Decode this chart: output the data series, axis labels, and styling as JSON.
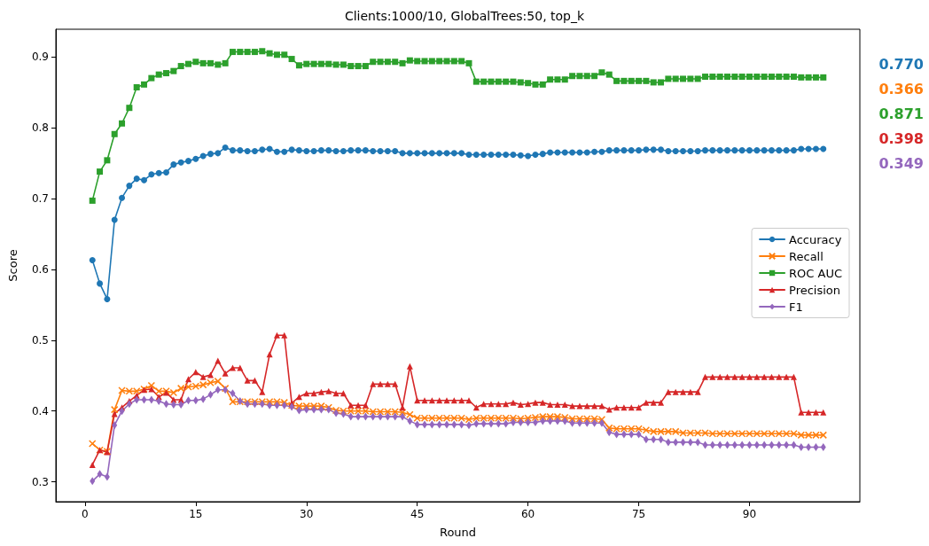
{
  "chart_data": {
    "type": "line",
    "title": "Clients:1000/10, GlobalTrees:50, top_k",
    "xlabel": "Round",
    "ylabel": "Score",
    "x": [
      1,
      2,
      3,
      4,
      5,
      6,
      7,
      8,
      9,
      10,
      11,
      12,
      13,
      14,
      15,
      16,
      17,
      18,
      19,
      20,
      21,
      22,
      23,
      24,
      25,
      26,
      27,
      28,
      29,
      30,
      31,
      32,
      33,
      34,
      35,
      36,
      37,
      38,
      39,
      40,
      41,
      42,
      43,
      44,
      45,
      46,
      47,
      48,
      49,
      50,
      51,
      52,
      53,
      54,
      55,
      56,
      57,
      58,
      59,
      60,
      61,
      62,
      63,
      64,
      65,
      66,
      67,
      68,
      69,
      70,
      71,
      72,
      73,
      74,
      75,
      76,
      77,
      78,
      79,
      80,
      81,
      82,
      83,
      84,
      85,
      86,
      87,
      88,
      89,
      90,
      91,
      92,
      93,
      94,
      95,
      96,
      97,
      98,
      99,
      100
    ],
    "xlim": [
      -3.95,
      104.95
    ],
    "xticks": [
      0,
      15,
      30,
      45,
      60,
      75,
      90
    ],
    "ylim": [
      0.272,
      0.939
    ],
    "yticks": [
      0.3,
      0.4,
      0.5,
      0.6,
      0.7,
      0.8,
      0.9
    ],
    "grid": false,
    "legend": "right",
    "line_style": "solid",
    "series": [
      {
        "name": "Accuracy",
        "color": "#1f77b4",
        "marker": "circle",
        "values": [
          0.613,
          0.58,
          0.558,
          0.67,
          0.701,
          0.718,
          0.728,
          0.726,
          0.734,
          0.736,
          0.737,
          0.748,
          0.751,
          0.753,
          0.756,
          0.76,
          0.763,
          0.764,
          0.772,
          0.768,
          0.768,
          0.767,
          0.767,
          0.769,
          0.77,
          0.766,
          0.766,
          0.769,
          0.768,
          0.767,
          0.767,
          0.768,
          0.768,
          0.767,
          0.767,
          0.768,
          0.768,
          0.768,
          0.767,
          0.767,
          0.767,
          0.767,
          0.764,
          0.764,
          0.764,
          0.764,
          0.764,
          0.764,
          0.764,
          0.764,
          0.764,
          0.762,
          0.762,
          0.762,
          0.762,
          0.762,
          0.762,
          0.762,
          0.761,
          0.76,
          0.762,
          0.763,
          0.765,
          0.765,
          0.765,
          0.765,
          0.765,
          0.765,
          0.766,
          0.766,
          0.768,
          0.768,
          0.768,
          0.768,
          0.768,
          0.769,
          0.769,
          0.769,
          0.767,
          0.767,
          0.767,
          0.767,
          0.767,
          0.768,
          0.768,
          0.768,
          0.768,
          0.768,
          0.768,
          0.768,
          0.768,
          0.768,
          0.768,
          0.768,
          0.768,
          0.768,
          0.77,
          0.77,
          0.77,
          0.77
        ]
      },
      {
        "name": "Recall",
        "color": "#ff7f0e",
        "marker": "cross",
        "values": [
          0.354,
          0.345,
          0.343,
          0.402,
          0.429,
          0.428,
          0.428,
          0.431,
          0.436,
          0.428,
          0.428,
          0.426,
          0.432,
          0.434,
          0.435,
          0.437,
          0.44,
          0.442,
          0.432,
          0.413,
          0.413,
          0.413,
          0.413,
          0.413,
          0.413,
          0.413,
          0.412,
          0.408,
          0.407,
          0.407,
          0.407,
          0.407,
          0.405,
          0.401,
          0.4,
          0.4,
          0.4,
          0.4,
          0.399,
          0.399,
          0.399,
          0.399,
          0.398,
          0.395,
          0.39,
          0.39,
          0.39,
          0.39,
          0.39,
          0.39,
          0.39,
          0.388,
          0.39,
          0.39,
          0.39,
          0.39,
          0.39,
          0.39,
          0.389,
          0.39,
          0.391,
          0.392,
          0.392,
          0.392,
          0.391,
          0.389,
          0.389,
          0.389,
          0.389,
          0.388,
          0.376,
          0.375,
          0.375,
          0.375,
          0.375,
          0.373,
          0.371,
          0.371,
          0.371,
          0.371,
          0.369,
          0.369,
          0.369,
          0.369,
          0.368,
          0.368,
          0.368,
          0.368,
          0.368,
          0.368,
          0.368,
          0.368,
          0.368,
          0.368,
          0.368,
          0.368,
          0.366,
          0.366,
          0.366,
          0.366
        ]
      },
      {
        "name": "ROC AUC",
        "color": "#2ca02c",
        "marker": "square",
        "values": [
          0.697,
          0.738,
          0.754,
          0.791,
          0.806,
          0.828,
          0.857,
          0.861,
          0.87,
          0.875,
          0.877,
          0.88,
          0.887,
          0.89,
          0.893,
          0.891,
          0.891,
          0.889,
          0.891,
          0.907,
          0.907,
          0.907,
          0.907,
          0.908,
          0.905,
          0.903,
          0.903,
          0.897,
          0.888,
          0.89,
          0.89,
          0.89,
          0.89,
          0.889,
          0.889,
          0.887,
          0.887,
          0.887,
          0.893,
          0.893,
          0.893,
          0.893,
          0.891,
          0.895,
          0.894,
          0.894,
          0.894,
          0.894,
          0.894,
          0.894,
          0.894,
          0.891,
          0.865,
          0.865,
          0.865,
          0.865,
          0.865,
          0.865,
          0.864,
          0.863,
          0.861,
          0.861,
          0.868,
          0.868,
          0.868,
          0.873,
          0.873,
          0.873,
          0.873,
          0.878,
          0.875,
          0.866,
          0.866,
          0.866,
          0.866,
          0.866,
          0.864,
          0.864,
          0.869,
          0.869,
          0.869,
          0.869,
          0.869,
          0.872,
          0.872,
          0.872,
          0.872,
          0.872,
          0.872,
          0.872,
          0.872,
          0.872,
          0.872,
          0.872,
          0.872,
          0.872,
          0.871,
          0.871,
          0.871,
          0.871
        ]
      },
      {
        "name": "Precision",
        "color": "#d62728",
        "marker": "triangle",
        "values": [
          0.324,
          0.345,
          0.342,
          0.396,
          0.405,
          0.414,
          0.422,
          0.43,
          0.431,
          0.42,
          0.426,
          0.416,
          0.416,
          0.445,
          0.455,
          0.448,
          0.451,
          0.471,
          0.453,
          0.461,
          0.461,
          0.443,
          0.443,
          0.427,
          0.48,
          0.507,
          0.507,
          0.411,
          0.42,
          0.425,
          0.425,
          0.427,
          0.428,
          0.425,
          0.425,
          0.408,
          0.408,
          0.408,
          0.438,
          0.438,
          0.438,
          0.438,
          0.405,
          0.463,
          0.415,
          0.415,
          0.415,
          0.415,
          0.415,
          0.415,
          0.415,
          0.415,
          0.405,
          0.41,
          0.41,
          0.41,
          0.41,
          0.412,
          0.409,
          0.41,
          0.412,
          0.412,
          0.409,
          0.409,
          0.409,
          0.407,
          0.407,
          0.407,
          0.407,
          0.407,
          0.402,
          0.405,
          0.405,
          0.405,
          0.405,
          0.412,
          0.412,
          0.412,
          0.427,
          0.427,
          0.427,
          0.427,
          0.427,
          0.448,
          0.448,
          0.448,
          0.448,
          0.448,
          0.448,
          0.448,
          0.448,
          0.448,
          0.448,
          0.448,
          0.448,
          0.448,
          0.398,
          0.398,
          0.398,
          0.398
        ]
      },
      {
        "name": "F1",
        "color": "#9467bd",
        "marker": "diamond",
        "values": [
          0.301,
          0.311,
          0.307,
          0.38,
          0.4,
          0.41,
          0.416,
          0.416,
          0.416,
          0.414,
          0.41,
          0.409,
          0.409,
          0.415,
          0.415,
          0.417,
          0.423,
          0.43,
          0.43,
          0.425,
          0.414,
          0.41,
          0.41,
          0.41,
          0.408,
          0.408,
          0.408,
          0.406,
          0.401,
          0.402,
          0.402,
          0.402,
          0.402,
          0.397,
          0.396,
          0.392,
          0.392,
          0.392,
          0.392,
          0.392,
          0.392,
          0.392,
          0.392,
          0.386,
          0.381,
          0.381,
          0.381,
          0.381,
          0.381,
          0.381,
          0.381,
          0.38,
          0.382,
          0.382,
          0.382,
          0.382,
          0.382,
          0.384,
          0.384,
          0.384,
          0.384,
          0.386,
          0.386,
          0.386,
          0.386,
          0.383,
          0.383,
          0.383,
          0.383,
          0.383,
          0.37,
          0.367,
          0.367,
          0.367,
          0.367,
          0.36,
          0.36,
          0.36,
          0.356,
          0.356,
          0.356,
          0.356,
          0.356,
          0.352,
          0.352,
          0.352,
          0.352,
          0.352,
          0.352,
          0.352,
          0.352,
          0.352,
          0.352,
          0.352,
          0.352,
          0.352,
          0.349,
          0.349,
          0.349,
          0.349
        ]
      }
    ],
    "annotations": [
      "0.770",
      "0.366",
      "0.871",
      "0.398",
      "0.349"
    ]
  }
}
